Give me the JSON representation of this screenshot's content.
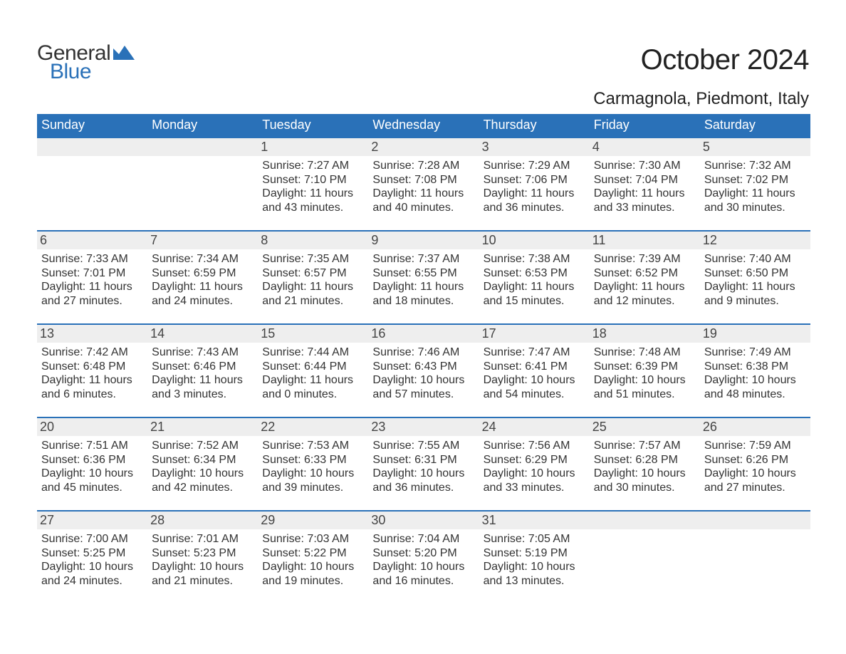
{
  "logo": {
    "word1": "General",
    "word2": "Blue",
    "accent_color": "#2a71b8"
  },
  "header": {
    "month_title": "October 2024",
    "location": "Carmagnola, Piedmont, Italy"
  },
  "colors": {
    "header_bg": "#2a71b8",
    "header_text": "#ffffff",
    "daynum_bg": "#eeeeee",
    "daynum_border": "#2a71b8",
    "body_text": "#333333",
    "page_bg": "#ffffff"
  },
  "typography": {
    "month_title_fontsize": 40,
    "location_fontsize": 24,
    "dow_fontsize": 18,
    "daynum_fontsize": 18,
    "body_fontsize": 16
  },
  "calendar": {
    "days_of_week": [
      "Sunday",
      "Monday",
      "Tuesday",
      "Wednesday",
      "Thursday",
      "Friday",
      "Saturday"
    ],
    "weeks": [
      [
        {
          "num": "",
          "sunrise": "",
          "sunset": "",
          "daylight": ""
        },
        {
          "num": "",
          "sunrise": "",
          "sunset": "",
          "daylight": ""
        },
        {
          "num": "1",
          "sunrise": "Sunrise: 7:27 AM",
          "sunset": "Sunset: 7:10 PM",
          "daylight": "Daylight: 11 hours and 43 minutes."
        },
        {
          "num": "2",
          "sunrise": "Sunrise: 7:28 AM",
          "sunset": "Sunset: 7:08 PM",
          "daylight": "Daylight: 11 hours and 40 minutes."
        },
        {
          "num": "3",
          "sunrise": "Sunrise: 7:29 AM",
          "sunset": "Sunset: 7:06 PM",
          "daylight": "Daylight: 11 hours and 36 minutes."
        },
        {
          "num": "4",
          "sunrise": "Sunrise: 7:30 AM",
          "sunset": "Sunset: 7:04 PM",
          "daylight": "Daylight: 11 hours and 33 minutes."
        },
        {
          "num": "5",
          "sunrise": "Sunrise: 7:32 AM",
          "sunset": "Sunset: 7:02 PM",
          "daylight": "Daylight: 11 hours and 30 minutes."
        }
      ],
      [
        {
          "num": "6",
          "sunrise": "Sunrise: 7:33 AM",
          "sunset": "Sunset: 7:01 PM",
          "daylight": "Daylight: 11 hours and 27 minutes."
        },
        {
          "num": "7",
          "sunrise": "Sunrise: 7:34 AM",
          "sunset": "Sunset: 6:59 PM",
          "daylight": "Daylight: 11 hours and 24 minutes."
        },
        {
          "num": "8",
          "sunrise": "Sunrise: 7:35 AM",
          "sunset": "Sunset: 6:57 PM",
          "daylight": "Daylight: 11 hours and 21 minutes."
        },
        {
          "num": "9",
          "sunrise": "Sunrise: 7:37 AM",
          "sunset": "Sunset: 6:55 PM",
          "daylight": "Daylight: 11 hours and 18 minutes."
        },
        {
          "num": "10",
          "sunrise": "Sunrise: 7:38 AM",
          "sunset": "Sunset: 6:53 PM",
          "daylight": "Daylight: 11 hours and 15 minutes."
        },
        {
          "num": "11",
          "sunrise": "Sunrise: 7:39 AM",
          "sunset": "Sunset: 6:52 PM",
          "daylight": "Daylight: 11 hours and 12 minutes."
        },
        {
          "num": "12",
          "sunrise": "Sunrise: 7:40 AM",
          "sunset": "Sunset: 6:50 PM",
          "daylight": "Daylight: 11 hours and 9 minutes."
        }
      ],
      [
        {
          "num": "13",
          "sunrise": "Sunrise: 7:42 AM",
          "sunset": "Sunset: 6:48 PM",
          "daylight": "Daylight: 11 hours and 6 minutes."
        },
        {
          "num": "14",
          "sunrise": "Sunrise: 7:43 AM",
          "sunset": "Sunset: 6:46 PM",
          "daylight": "Daylight: 11 hours and 3 minutes."
        },
        {
          "num": "15",
          "sunrise": "Sunrise: 7:44 AM",
          "sunset": "Sunset: 6:44 PM",
          "daylight": "Daylight: 11 hours and 0 minutes."
        },
        {
          "num": "16",
          "sunrise": "Sunrise: 7:46 AM",
          "sunset": "Sunset: 6:43 PM",
          "daylight": "Daylight: 10 hours and 57 minutes."
        },
        {
          "num": "17",
          "sunrise": "Sunrise: 7:47 AM",
          "sunset": "Sunset: 6:41 PM",
          "daylight": "Daylight: 10 hours and 54 minutes."
        },
        {
          "num": "18",
          "sunrise": "Sunrise: 7:48 AM",
          "sunset": "Sunset: 6:39 PM",
          "daylight": "Daylight: 10 hours and 51 minutes."
        },
        {
          "num": "19",
          "sunrise": "Sunrise: 7:49 AM",
          "sunset": "Sunset: 6:38 PM",
          "daylight": "Daylight: 10 hours and 48 minutes."
        }
      ],
      [
        {
          "num": "20",
          "sunrise": "Sunrise: 7:51 AM",
          "sunset": "Sunset: 6:36 PM",
          "daylight": "Daylight: 10 hours and 45 minutes."
        },
        {
          "num": "21",
          "sunrise": "Sunrise: 7:52 AM",
          "sunset": "Sunset: 6:34 PM",
          "daylight": "Daylight: 10 hours and 42 minutes."
        },
        {
          "num": "22",
          "sunrise": "Sunrise: 7:53 AM",
          "sunset": "Sunset: 6:33 PM",
          "daylight": "Daylight: 10 hours and 39 minutes."
        },
        {
          "num": "23",
          "sunrise": "Sunrise: 7:55 AM",
          "sunset": "Sunset: 6:31 PM",
          "daylight": "Daylight: 10 hours and 36 minutes."
        },
        {
          "num": "24",
          "sunrise": "Sunrise: 7:56 AM",
          "sunset": "Sunset: 6:29 PM",
          "daylight": "Daylight: 10 hours and 33 minutes."
        },
        {
          "num": "25",
          "sunrise": "Sunrise: 7:57 AM",
          "sunset": "Sunset: 6:28 PM",
          "daylight": "Daylight: 10 hours and 30 minutes."
        },
        {
          "num": "26",
          "sunrise": "Sunrise: 7:59 AM",
          "sunset": "Sunset: 6:26 PM",
          "daylight": "Daylight: 10 hours and 27 minutes."
        }
      ],
      [
        {
          "num": "27",
          "sunrise": "Sunrise: 7:00 AM",
          "sunset": "Sunset: 5:25 PM",
          "daylight": "Daylight: 10 hours and 24 minutes."
        },
        {
          "num": "28",
          "sunrise": "Sunrise: 7:01 AM",
          "sunset": "Sunset: 5:23 PM",
          "daylight": "Daylight: 10 hours and 21 minutes."
        },
        {
          "num": "29",
          "sunrise": "Sunrise: 7:03 AM",
          "sunset": "Sunset: 5:22 PM",
          "daylight": "Daylight: 10 hours and 19 minutes."
        },
        {
          "num": "30",
          "sunrise": "Sunrise: 7:04 AM",
          "sunset": "Sunset: 5:20 PM",
          "daylight": "Daylight: 10 hours and 16 minutes."
        },
        {
          "num": "31",
          "sunrise": "Sunrise: 7:05 AM",
          "sunset": "Sunset: 5:19 PM",
          "daylight": "Daylight: 10 hours and 13 minutes."
        },
        {
          "num": "",
          "sunrise": "",
          "sunset": "",
          "daylight": ""
        },
        {
          "num": "",
          "sunrise": "",
          "sunset": "",
          "daylight": ""
        }
      ]
    ]
  }
}
